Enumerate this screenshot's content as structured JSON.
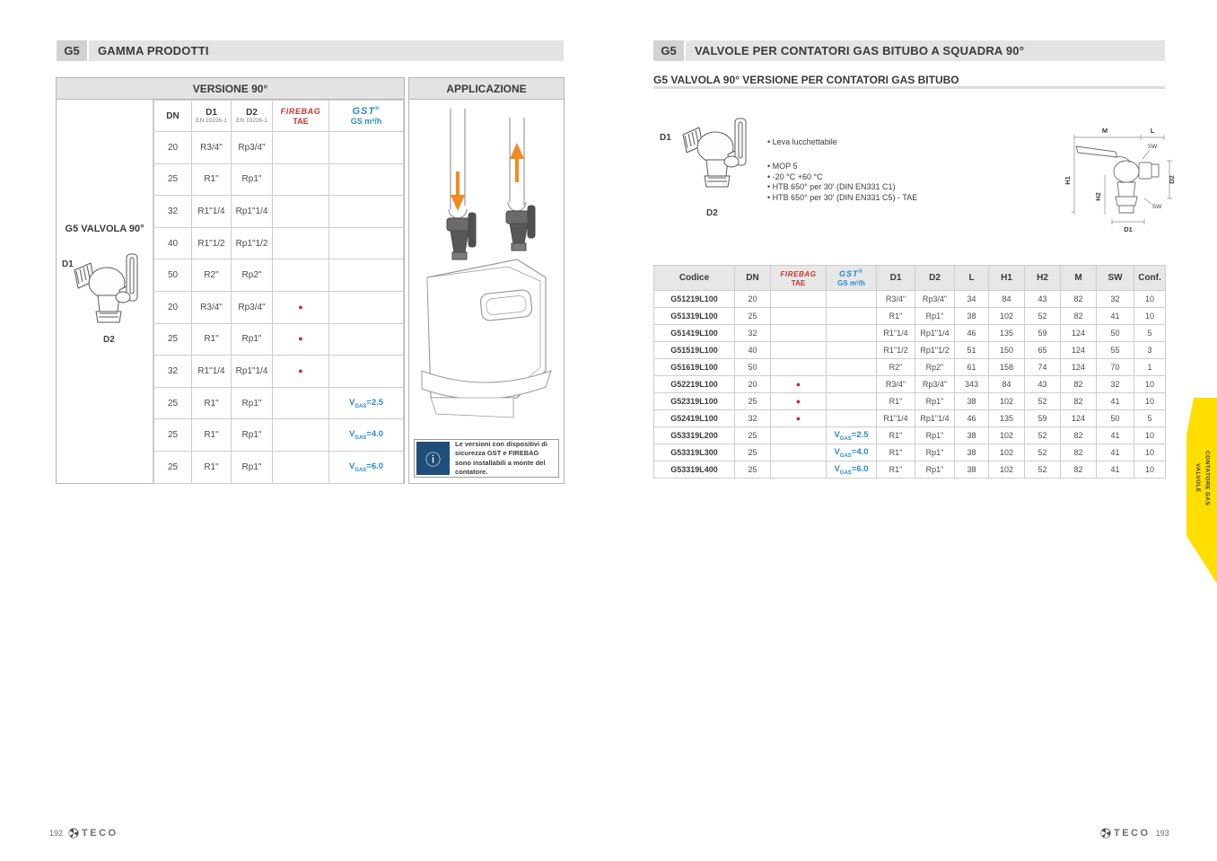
{
  "symbols": {
    "dot": "●",
    "vgas_var": "V",
    "vgas_sub": "GAS",
    "equals": "=",
    "info_icon": "ⓘ",
    "reg": "®"
  },
  "colors": {
    "accent_red": "#c5342e",
    "accent_blue": "#2b87c8",
    "tab_yellow": "#ffde00",
    "arrow_orange": "#f5891f",
    "note_blue": "#1f4e79",
    "bar_gray": "#e3e3e3"
  },
  "page_left": {
    "section_code": "G5",
    "section_title": "GAMMA PRODOTTI",
    "table": {
      "header_left": "VERSIONE 90°",
      "header_right": "APPLICAZIONE",
      "image_label": "G5 VALVOLA 90°",
      "d1_label": "D1",
      "d2_label": "D2",
      "col_dn": "DN",
      "col_d1": "D1",
      "col_d1_sub": "EN 10226-1",
      "col_d2": "D2",
      "col_d2_sub": "EN 10226-1",
      "col_firebag": "FIREBAG",
      "col_firebag_sub": "TAE",
      "col_gst": "GST",
      "col_gst_sub_bold": "GS",
      "col_gst_sub_rest": " m³/h",
      "rows": [
        {
          "dn": "20",
          "d1": "R3/4\"",
          "d2": "Rp3/4\"",
          "firebag": false,
          "vgas": ""
        },
        {
          "dn": "25",
          "d1": "R1\"",
          "d2": "Rp1\"",
          "firebag": false,
          "vgas": ""
        },
        {
          "dn": "32",
          "d1": "R1\"1/4",
          "d2": "Rp1\"1/4",
          "firebag": false,
          "vgas": ""
        },
        {
          "dn": "40",
          "d1": "R1\"1/2",
          "d2": "Rp1\"1/2",
          "firebag": false,
          "vgas": ""
        },
        {
          "dn": "50",
          "d1": "R2\"",
          "d2": "Rp2\"",
          "firebag": false,
          "vgas": ""
        },
        {
          "dn": "20",
          "d1": "R3/4\"",
          "d2": "Rp3/4\"",
          "firebag": true,
          "vgas": ""
        },
        {
          "dn": "25",
          "d1": "R1\"",
          "d2": "Rp1\"",
          "firebag": true,
          "vgas": ""
        },
        {
          "dn": "32",
          "d1": "R1\"1/4",
          "d2": "Rp1\"1/4",
          "firebag": true,
          "vgas": ""
        },
        {
          "dn": "25",
          "d1": "R1\"",
          "d2": "Rp1\"",
          "firebag": false,
          "vgas": "2.5"
        },
        {
          "dn": "25",
          "d1": "R1\"",
          "d2": "Rp1\"",
          "firebag": false,
          "vgas": "4.0"
        },
        {
          "dn": "25",
          "d1": "R1\"",
          "d2": "Rp1\"",
          "firebag": false,
          "vgas": "6.0"
        }
      ]
    },
    "note": {
      "text": "Le versioni con dispositivi di sicurezza GST e FIREBAG sono installabili a monte del contatore."
    },
    "footer": {
      "page_number": "192",
      "brand": "TECO"
    }
  },
  "page_right": {
    "section_code": "G5",
    "section_title": "VALVOLE PER CONTATORI GAS BITUBO A SQUADRA 90°",
    "subtitle": "G5 VALVOLA 90° VERSIONE PER CONTATORI GAS BITUBO",
    "d1_label": "D1",
    "d2_label": "D2",
    "bullets_group1": [
      "Leva lucchettabile"
    ],
    "bullets_group2": [
      "MOP 5",
      "-20 °C +60 °C",
      "HTB 650° per 30' (DIN EN331 C1)",
      "HTB 650° per 30' (DIN EN331 C5) - TAE"
    ],
    "diagram": {
      "m": "M",
      "l": "L",
      "sw_top": "SW",
      "h1": "H1",
      "h2": "H2",
      "d2": "D2",
      "sw_bottom": "SW",
      "d1": "D1"
    },
    "table": {
      "col_codice": "Codice",
      "col_dn": "DN",
      "col_firebag": "FIREBAG",
      "col_firebag_sub": "TAE",
      "col_gst": "GST",
      "col_gst_sub_bold": "GS",
      "col_gst_sub_rest": " m³/h",
      "col_d1": "D1",
      "col_d2": "D2",
      "col_l": "L",
      "col_h1": "H1",
      "col_h2": "H2",
      "col_m": "M",
      "col_sw": "SW",
      "col_conf": "Conf.",
      "rows": [
        {
          "codice": "G51219L100",
          "dn": "20",
          "firebag": false,
          "vgas": "",
          "d1": "R3/4\"",
          "d2": "Rp3/4\"",
          "l": "34",
          "h1": "84",
          "h2": "43",
          "m": "82",
          "sw": "32",
          "conf": "10"
        },
        {
          "codice": "G51319L100",
          "dn": "25",
          "firebag": false,
          "vgas": "",
          "d1": "R1\"",
          "d2": "Rp1\"",
          "l": "38",
          "h1": "102",
          "h2": "52",
          "m": "82",
          "sw": "41",
          "conf": "10"
        },
        {
          "codice": "G51419L100",
          "dn": "32",
          "firebag": false,
          "vgas": "",
          "d1": "R1\"1/4",
          "d2": "Rp1\"1/4",
          "l": "46",
          "h1": "135",
          "h2": "59",
          "m": "124",
          "sw": "50",
          "conf": "5"
        },
        {
          "codice": "G51519L100",
          "dn": "40",
          "firebag": false,
          "vgas": "",
          "d1": "R1\"1/2",
          "d2": "Rp1\"1/2",
          "l": "51",
          "h1": "150",
          "h2": "65",
          "m": "124",
          "sw": "55",
          "conf": "3"
        },
        {
          "codice": "G51619L100",
          "dn": "50",
          "firebag": false,
          "vgas": "",
          "d1": "R2\"",
          "d2": "Rp2\"",
          "l": "61",
          "h1": "158",
          "h2": "74",
          "m": "124",
          "sw": "70",
          "conf": "1"
        },
        {
          "codice": "G52219L100",
          "dn": "20",
          "firebag": true,
          "vgas": "",
          "d1": "R3/4\"",
          "d2": "Rp3/4\"",
          "l": "343",
          "h1": "84",
          "h2": "43",
          "m": "82",
          "sw": "32",
          "conf": "10"
        },
        {
          "codice": "G52319L100",
          "dn": "25",
          "firebag": true,
          "vgas": "",
          "d1": "R1\"",
          "d2": "Rp1\"",
          "l": "38",
          "h1": "102",
          "h2": "52",
          "m": "82",
          "sw": "41",
          "conf": "10"
        },
        {
          "codice": "G52419L100",
          "dn": "32",
          "firebag": true,
          "vgas": "",
          "d1": "R1\"1/4",
          "d2": "Rp1\"1/4",
          "l": "46",
          "h1": "135",
          "h2": "59",
          "m": "124",
          "sw": "50",
          "conf": "5"
        },
        {
          "codice": "G53319L200",
          "dn": "25",
          "firebag": false,
          "vgas": "2.5",
          "d1": "R1\"",
          "d2": "Rp1\"",
          "l": "38",
          "h1": "102",
          "h2": "52",
          "m": "82",
          "sw": "41",
          "conf": "10"
        },
        {
          "codice": "G53319L300",
          "dn": "25",
          "firebag": false,
          "vgas": "4.0",
          "d1": "R1\"",
          "d2": "Rp1\"",
          "l": "38",
          "h1": "102",
          "h2": "52",
          "m": "82",
          "sw": "41",
          "conf": "10"
        },
        {
          "codice": "G53319L400",
          "dn": "25",
          "firebag": false,
          "vgas": "6.0",
          "d1": "R1\"",
          "d2": "Rp1\"",
          "l": "38",
          "h1": "102",
          "h2": "52",
          "m": "82",
          "sw": "41",
          "conf": "10"
        }
      ]
    },
    "footer": {
      "page_number": "193",
      "brand": "TECO"
    }
  },
  "side_tab": {
    "line1": "VALVOLE",
    "line2": "CONTATORE GAS"
  }
}
